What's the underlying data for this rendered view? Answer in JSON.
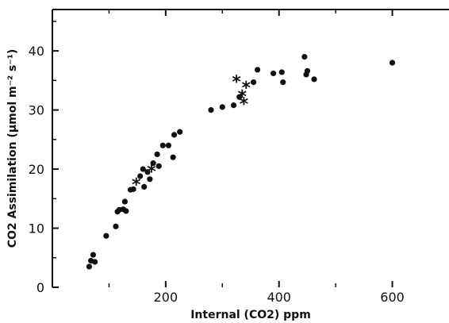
{
  "chart_data": {
    "type": "scatter",
    "xlabel": "Internal (CO2) ppm",
    "ylabel": "CO2 Assimilation (μmol m⁻² s⁻¹)",
    "xlim": [
      0,
      700
    ],
    "ylim": [
      0,
      47
    ],
    "x_ticks": [
      200,
      400,
      600
    ],
    "y_ticks": [
      0,
      10,
      20,
      30,
      40
    ],
    "marker_symbols": {
      "dot": "●",
      "star": "*"
    },
    "series": [
      {
        "marker": "dot",
        "points": [
          [
            65,
            3.5
          ],
          [
            68,
            4.5
          ],
          [
            72,
            5.5
          ],
          [
            75,
            4.3
          ],
          [
            95,
            8.7
          ],
          [
            112,
            10.3
          ],
          [
            115,
            12.8
          ],
          [
            118,
            13.1
          ],
          [
            125,
            13.2
          ],
          [
            128,
            14.5
          ],
          [
            130,
            12.9
          ],
          [
            138,
            16.5
          ],
          [
            143,
            16.6
          ],
          [
            155,
            18.8
          ],
          [
            160,
            20
          ],
          [
            162,
            17
          ],
          [
            168,
            19.5
          ],
          [
            172,
            18.3
          ],
          [
            178,
            21
          ],
          [
            185,
            22.5
          ],
          [
            188,
            20.5
          ],
          [
            195,
            24
          ],
          [
            205,
            24
          ],
          [
            213,
            22
          ],
          [
            215,
            25.8
          ],
          [
            225,
            26.3
          ],
          [
            280,
            30
          ],
          [
            300,
            30.5
          ],
          [
            320,
            30.8
          ],
          [
            330,
            32.2
          ],
          [
            355,
            34.7
          ],
          [
            362,
            36.8
          ],
          [
            390,
            36.2
          ],
          [
            405,
            36.4
          ],
          [
            407,
            34.7
          ],
          [
            445,
            39
          ],
          [
            448,
            36
          ],
          [
            450,
            36.6
          ],
          [
            462,
            35.2
          ],
          [
            600,
            38
          ]
        ]
      },
      {
        "marker": "star",
        "points": [
          [
            148,
            17.6
          ],
          [
            175,
            19.8
          ],
          [
            325,
            35
          ],
          [
            335,
            32.5
          ],
          [
            338,
            31.2
          ],
          [
            342,
            34
          ]
        ]
      }
    ]
  }
}
